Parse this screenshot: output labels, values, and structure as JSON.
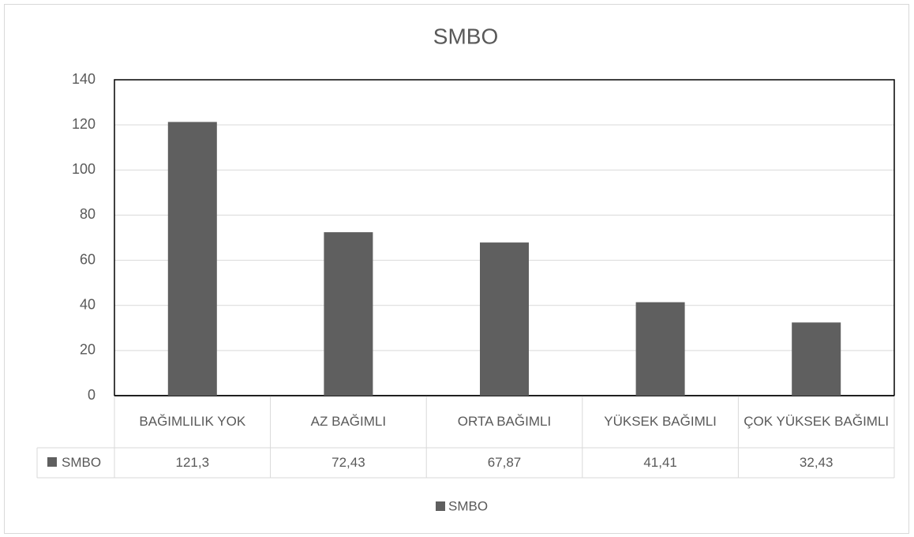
{
  "chart_data": {
    "type": "bar",
    "title": "SMBO",
    "categories": [
      "BAĞIMLILIK YOK",
      "AZ BAĞIMLI",
      "ORTA BAĞIMLI",
      "YÜKSEK BAĞIMLI",
      "ÇOK YÜKSEK BAĞIMLI"
    ],
    "series": [
      {
        "name": "SMBO",
        "color": "#5f5f5f",
        "values": [
          121.3,
          72.43,
          67.87,
          41.41,
          32.43
        ],
        "value_labels": [
          "121,3",
          "72,43",
          "67,87",
          "41,41",
          "32,43"
        ]
      }
    ],
    "ylim": [
      0,
      140
    ],
    "yticks": [
      0,
      20,
      40,
      60,
      80,
      100,
      120,
      140
    ],
    "grid": true,
    "legend": "bottom",
    "data_table": true
  }
}
